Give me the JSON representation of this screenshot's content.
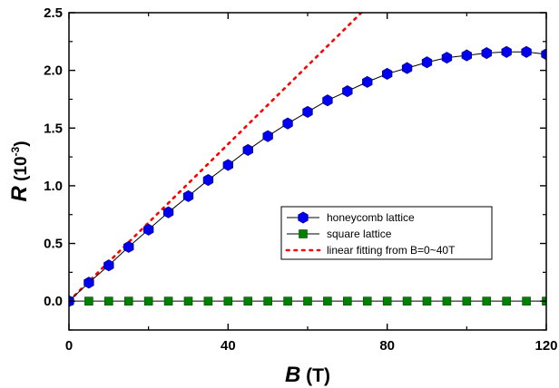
{
  "chart_data": {
    "type": "line",
    "xlabel": {
      "symbol": "B",
      "unit": " (T)"
    },
    "ylabel": {
      "symbol": "R",
      "unit_open": " (10",
      "unit_exp": "-3",
      "unit_close": ")"
    },
    "xlim": [
      0,
      120
    ],
    "ylim": [
      -0.25,
      2.5
    ],
    "x_ticks": [
      0,
      40,
      80,
      120
    ],
    "x_tick_labels": [
      "0",
      "40",
      "80",
      "120"
    ],
    "y_ticks": [
      0.0,
      0.5,
      1.0,
      1.5,
      2.0,
      2.5
    ],
    "y_tick_labels": [
      "0.0",
      "0.5",
      "1.0",
      "1.5",
      "2.0",
      "2.5"
    ],
    "grid": false,
    "legend_position": "center-right",
    "series": [
      {
        "name": "honeycomb lattice",
        "color": "#0000ee",
        "marker": "hexagon",
        "line": "solid",
        "x": [
          0,
          5,
          10,
          15,
          20,
          25,
          30,
          35,
          40,
          45,
          50,
          55,
          60,
          65,
          70,
          75,
          80,
          85,
          90,
          95,
          100,
          105,
          110,
          115,
          120
        ],
        "y": [
          0.0,
          0.16,
          0.31,
          0.47,
          0.62,
          0.77,
          0.91,
          1.05,
          1.18,
          1.31,
          1.43,
          1.54,
          1.64,
          1.74,
          1.82,
          1.9,
          1.97,
          2.02,
          2.07,
          2.11,
          2.13,
          2.15,
          2.16,
          2.16,
          2.14
        ]
      },
      {
        "name": "square lattice",
        "color": "#008000",
        "marker": "square",
        "line": "solid",
        "x": [
          0,
          5,
          10,
          15,
          20,
          25,
          30,
          35,
          40,
          45,
          50,
          55,
          60,
          65,
          70,
          75,
          80,
          85,
          90,
          95,
          100,
          105,
          110,
          115,
          120
        ],
        "y": [
          0,
          0,
          0,
          0,
          0,
          0,
          0,
          0,
          0,
          0,
          0,
          0,
          0,
          0,
          0,
          0,
          0,
          0,
          0,
          0,
          0,
          0,
          0,
          0,
          0
        ]
      },
      {
        "name": "linear fitting from B=0~40T",
        "color": "#ff0000",
        "marker": "none",
        "line": "dotted",
        "x": [
          0,
          73.5
        ],
        "y": [
          0.0,
          2.5
        ]
      }
    ]
  }
}
